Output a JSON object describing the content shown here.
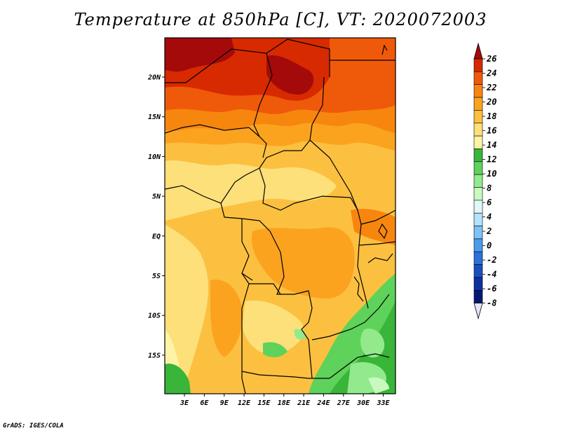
{
  "title": "Temperature at 850hPa [C], VT: 2020072003",
  "credit": "GrADS: IGES/COLA",
  "map": {
    "lat_ticks": [
      "20N",
      "15N",
      "10N",
      "5N",
      "EQ",
      "5S",
      "10S",
      "15S"
    ],
    "lon_ticks": [
      "3E",
      "6E",
      "9E",
      "12E",
      "15E",
      "18E",
      "21E",
      "24E",
      "27E",
      "30E",
      "33E"
    ]
  },
  "colorbar": {
    "labels": [
      "26",
      "24",
      "22",
      "20",
      "18",
      "16",
      "14",
      "12",
      "10",
      "8",
      "6",
      "4",
      "2",
      "0",
      "-2",
      "-4",
      "-6",
      "-8"
    ],
    "colors": [
      "#a50a0a",
      "#d72a00",
      "#ef5a0a",
      "#f7860f",
      "#fba31f",
      "#fcc040",
      "#fde07a",
      "#fff3a8",
      "#39b539",
      "#5ed25a",
      "#92ea8c",
      "#c8fac0",
      "#e0f8f8",
      "#b4e2fa",
      "#7ec3f5",
      "#4a9ceb",
      "#2a72d7",
      "#1950bd",
      "#0d32a0",
      "#061873",
      "#e4e4f6"
    ]
  }
}
